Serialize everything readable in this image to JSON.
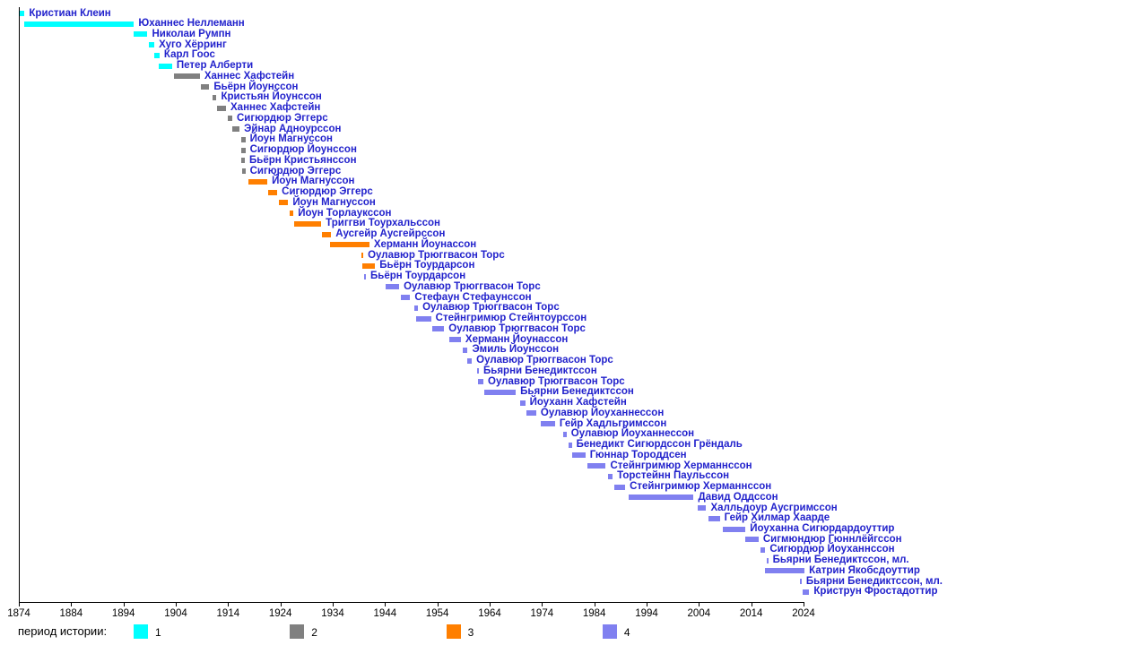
{
  "chart_data": {
    "type": "bar",
    "subtype": "gantt-timeline",
    "title": "",
    "xlabel": "",
    "ylabel": "",
    "grid": false,
    "legend_position": "bottom",
    "x_axis": {
      "min": 1874,
      "max": 2024,
      "tick_step": 10,
      "ticks": [
        1874,
        1884,
        1894,
        1904,
        1914,
        1924,
        1934,
        1944,
        1954,
        1964,
        1974,
        1984,
        1994,
        2004,
        2014,
        2024
      ]
    },
    "legend": {
      "label": "период истории:",
      "items": [
        {
          "label": "1",
          "color": "#00ffff"
        },
        {
          "label": "2",
          "color": "#808080"
        },
        {
          "label": "3",
          "color": "#ff7f00"
        },
        {
          "label": "4",
          "color": "#8080f0"
        }
      ]
    },
    "period_colors": {
      "1": "#00ffff",
      "2": "#808080",
      "3": "#ff7f00",
      "4": "#8080f0"
    },
    "rows": [
      {
        "name": "Кристиан Клеин",
        "period": 1,
        "start": 1874.0,
        "end": 1875.1
      },
      {
        "name": "Юханнес Неллеманн",
        "period": 1,
        "start": 1875.1,
        "end": 1896.0
      },
      {
        "name": "Николаи Румпн",
        "period": 1,
        "start": 1896.0,
        "end": 1898.6
      },
      {
        "name": "Хуго Хёрринг",
        "period": 1,
        "start": 1898.9,
        "end": 1899.9
      },
      {
        "name": "Карл Гоос",
        "period": 1,
        "start": 1899.9,
        "end": 1900.9
      },
      {
        "name": "Петер Алберти",
        "period": 1,
        "start": 1900.8,
        "end": 1903.3
      },
      {
        "name": "Ханнес Хафстейн",
        "period": 2,
        "start": 1903.6,
        "end": 1908.6
      },
      {
        "name": "Бьёрн Йоунссон",
        "period": 2,
        "start": 1908.8,
        "end": 1910.4
      },
      {
        "name": "Кристьян Йоунссон",
        "period": 2,
        "start": 1911.0,
        "end": 1911.8
      },
      {
        "name": "Ханнес Хафстейн",
        "period": 2,
        "start": 1911.9,
        "end": 1913.6
      },
      {
        "name": "Сигюрдюр Эггерс",
        "period": 2,
        "start": 1914.0,
        "end": 1914.8
      },
      {
        "name": "Эйнар Адноурссон",
        "period": 2,
        "start": 1914.8,
        "end": 1916.2
      },
      {
        "name": "Йоун Магнуссон",
        "period": 2,
        "start": 1916.5,
        "end": 1917.3
      },
      {
        "name": "Сигюрдюр Йоунссон",
        "period": 2,
        "start": 1916.5,
        "end": 1917.3
      },
      {
        "name": "Бьёрн Кристьянссон",
        "period": 2,
        "start": 1916.5,
        "end": 1917.2
      },
      {
        "name": "Сигюрдюр Эггерс",
        "period": 2,
        "start": 1916.6,
        "end": 1917.3
      },
      {
        "name": "Йоун Магнуссон",
        "period": 3,
        "start": 1917.9,
        "end": 1921.5
      },
      {
        "name": "Сигюрдюр Эггерс",
        "period": 3,
        "start": 1921.7,
        "end": 1923.4
      },
      {
        "name": "Йоун Магнуссон",
        "period": 3,
        "start": 1923.7,
        "end": 1925.5
      },
      {
        "name": "Йоун Торлаукссон",
        "period": 3,
        "start": 1925.8,
        "end": 1926.5
      },
      {
        "name": "Триггви Тоурхальссон",
        "period": 3,
        "start": 1926.7,
        "end": 1931.8
      },
      {
        "name": "Аусгейр Аусгейрссон",
        "period": 3,
        "start": 1932.0,
        "end": 1933.7
      },
      {
        "name": "Херманн Йоунассон",
        "period": 3,
        "start": 1933.5,
        "end": 1941.0
      },
      {
        "name": "Оулавюр Трюггвасон Торс",
        "period": 3,
        "start": 1939.5,
        "end": 1939.8
      },
      {
        "name": "Бьёрн Тоурдарсон",
        "period": 3,
        "start": 1939.7,
        "end": 1942.1
      },
      {
        "name": "Бьёрн Тоурдарсон",
        "period": 4,
        "start": 1940.0,
        "end": 1940.2
      },
      {
        "name": "Оулавюр Трюггвасон Торс",
        "period": 4,
        "start": 1944.1,
        "end": 1946.7
      },
      {
        "name": "Стефаун Стефаунссон",
        "period": 4,
        "start": 1947.0,
        "end": 1948.8
      },
      {
        "name": "Оулавюр Трюггвасон Торс",
        "period": 4,
        "start": 1949.6,
        "end": 1950.3
      },
      {
        "name": "Стейнгримюр Стейнтоурссон",
        "period": 4,
        "start": 1950.0,
        "end": 1952.8
      },
      {
        "name": "Оулавюр Трюггвасон Торс",
        "period": 4,
        "start": 1953.1,
        "end": 1955.3
      },
      {
        "name": "Херманн Йоунассон",
        "period": 4,
        "start": 1956.3,
        "end": 1958.5
      },
      {
        "name": "Эмиль Йоунссон",
        "period": 4,
        "start": 1958.8,
        "end": 1959.8
      },
      {
        "name": "Оулавюр Трюггвасон Торс",
        "period": 4,
        "start": 1959.7,
        "end": 1960.6
      },
      {
        "name": "Бьярни Бенедиктссон",
        "period": 4,
        "start": 1961.6,
        "end": 1961.8
      },
      {
        "name": "Оулавюр Трюггвасон Торс",
        "period": 4,
        "start": 1961.7,
        "end": 1962.8
      },
      {
        "name": "Бьярни Бенедиктссон",
        "period": 4,
        "start": 1962.9,
        "end": 1969.0
      },
      {
        "name": "Йоуханн Хафстейн",
        "period": 4,
        "start": 1969.9,
        "end": 1970.8
      },
      {
        "name": "Оулавюр Йоуханнессон",
        "period": 4,
        "start": 1971.1,
        "end": 1972.9
      },
      {
        "name": "Гейр Хадльгримссон",
        "period": 4,
        "start": 1973.7,
        "end": 1976.5
      },
      {
        "name": "Оулавюр Йоуханнессон",
        "period": 4,
        "start": 1978.0,
        "end": 1978.7
      },
      {
        "name": "Бенедикт Сигюрдссон Грёндаль",
        "period": 4,
        "start": 1979.0,
        "end": 1979.7
      },
      {
        "name": "Гюннар Тороддсен",
        "period": 4,
        "start": 1979.8,
        "end": 1982.3
      },
      {
        "name": "Стейнгримюр Херманнссон",
        "period": 4,
        "start": 1982.7,
        "end": 1986.2
      },
      {
        "name": "Торстейнн Паульссон",
        "period": 4,
        "start": 1986.7,
        "end": 1987.5
      },
      {
        "name": "Стейнгримюр Херманнссон",
        "period": 4,
        "start": 1987.9,
        "end": 1989.9
      },
      {
        "name": "Давид Оддссон",
        "period": 4,
        "start": 1990.5,
        "end": 2003.0
      },
      {
        "name": "Халльдоур Аусгримссон",
        "period": 4,
        "start": 2003.7,
        "end": 2005.4
      },
      {
        "name": "Гейр Хилмар Хаарде",
        "period": 4,
        "start": 2005.9,
        "end": 2008.0
      },
      {
        "name": "Йоуханна Сигюрдардоуттир",
        "period": 4,
        "start": 2008.5,
        "end": 2012.9
      },
      {
        "name": "Сигмюндюр Гюннлёйгссон",
        "period": 4,
        "start": 2012.8,
        "end": 2015.4
      },
      {
        "name": "Сигюрдюр Йоуханнссон",
        "period": 4,
        "start": 2015.7,
        "end": 2016.7
      },
      {
        "name": "Бьярни Бенедиктссон, мл.",
        "period": 4,
        "start": 2016.9,
        "end": 2017.1
      },
      {
        "name": "Катрин Якобсдоуттир",
        "period": 4,
        "start": 2016.6,
        "end": 2024.2
      },
      {
        "name": "Бьярни Бенедиктссон, мл.",
        "period": 4,
        "start": 2023.3,
        "end": 2023.5
      },
      {
        "name": "Криструн Фростадоттир",
        "period": 4,
        "start": 2023.9,
        "end": 2025.1
      }
    ]
  },
  "styles": {
    "label_color": "#2222cc",
    "axis_color": "#000000",
    "background": "#ffffff"
  }
}
